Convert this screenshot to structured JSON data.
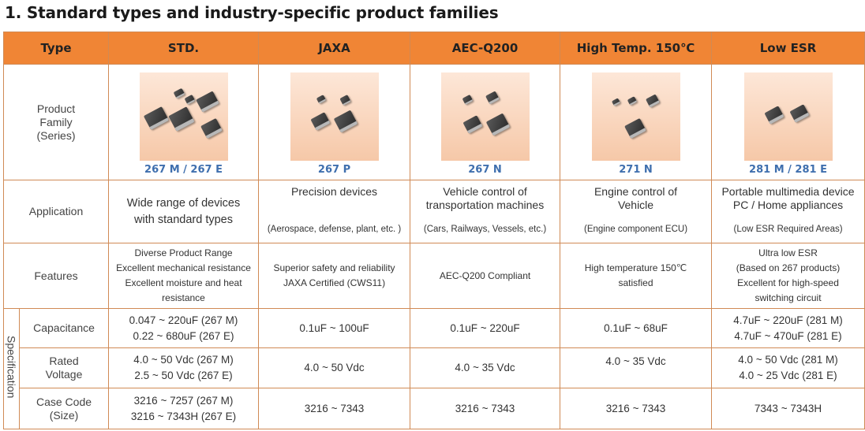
{
  "page_title": "1. Standard types and industry-specific product families",
  "columns": {
    "type": "Type",
    "std": "STD.",
    "jaxa": "JAXA",
    "aec": "AEC-Q200",
    "hightemp": "High Temp. 150℃",
    "lowesr": "Low ESR"
  },
  "row_labels": {
    "product_family": [
      "Product",
      "Family",
      "(Series)"
    ],
    "application": "Application",
    "features": "Features",
    "specification": "Specification",
    "capacitance": "Capacitance",
    "rated_voltage": [
      "Rated",
      "Voltage"
    ],
    "case_code": [
      "Case Code",
      "(Size)"
    ]
  },
  "series": {
    "std": "267 M / 267 E",
    "jaxa": "267 P",
    "aec": "267 N",
    "hightemp": "271 N",
    "lowesr": "281 M / 281 E"
  },
  "application": {
    "std": [
      "Wide range of devices",
      "with standard types"
    ],
    "jaxa_top": "Precision devices",
    "jaxa_bottom": "(Aerospace, defense, plant, etc. )",
    "aec_top": [
      "Vehicle control of",
      "transportation machines"
    ],
    "aec_bottom": "(Cars, Railways, Vessels, etc.)",
    "hightemp_top": [
      "Engine control of",
      "Vehicle"
    ],
    "hightemp_bottom": "(Engine component ECU)",
    "lowesr_top": [
      "Portable multimedia device",
      "PC / Home appliances"
    ],
    "lowesr_bottom": "(Low ESR Required Areas)"
  },
  "features": {
    "std": [
      "Diverse Product Range",
      "Excellent mechanical resistance",
      "Excellent moisture and heat",
      "resistance"
    ],
    "jaxa": [
      "Superior safety and reliability",
      "JAXA Certified (CWS11)"
    ],
    "aec": [
      "AEC-Q200 Compliant"
    ],
    "hightemp": [
      "High temperature 150℃",
      "satisfied"
    ],
    "lowesr": [
      "Ultra low ESR",
      "(Based on 267 products)",
      "Excellent for high-speed",
      "switching circuit"
    ]
  },
  "capacitance": {
    "std": [
      "0.047 ~ 220uF (267 M)",
      "0.22  ~ 680uF (267 E)"
    ],
    "jaxa": "0.1uF ~ 100uF",
    "aec": "0.1uF ~ 220uF",
    "hightemp": "0.1uF ~ 68uF",
    "lowesr": [
      "4.7uF ~ 220uF (281 M)",
      "4.7uF  ~ 470uF (281 E)"
    ]
  },
  "rated_voltage": {
    "std": [
      "4.0 ~ 50 Vdc (267 M)",
      "2.5 ~ 50 Vdc (267 E)"
    ],
    "jaxa": "4.0 ~ 50 Vdc",
    "aec": "4.0 ~ 35 Vdc",
    "hightemp": "4.0 ~ 35 Vdc",
    "lowesr": [
      "4.0 ~ 50 Vdc (281 M)",
      "4.0 ~ 25 Vdc (281 E)"
    ]
  },
  "case_code": {
    "std": [
      "3216 ~ 7257  (267 M)",
      "3216 ~ 7343H (267 E)"
    ],
    "jaxa": "3216 ~ 7343",
    "aec": "3216 ~ 7343",
    "hightemp": "3216 ~ 7343",
    "lowesr": "7343 ~ 7343H"
  },
  "colors": {
    "header_bg": "#f08535",
    "series_text": "#3f6fae",
    "border": "#d08a55"
  }
}
